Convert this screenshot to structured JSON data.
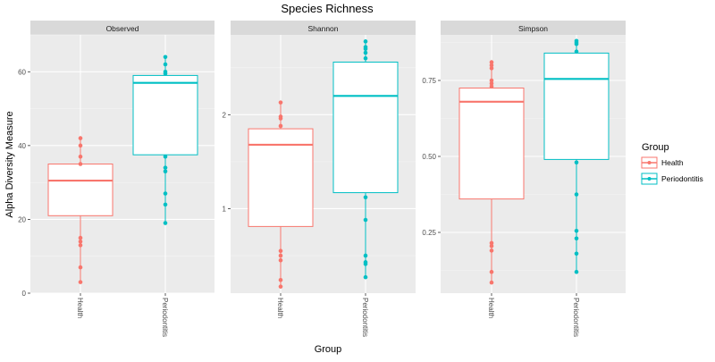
{
  "chart_data": {
    "type": "box",
    "title": "Species Richness",
    "xlabel": "Group",
    "ylabel": "Alpha Diversity Measure",
    "categories": [
      "Health",
      "Periodontitis"
    ],
    "legend": {
      "title": "Group",
      "position": "right",
      "items": [
        {
          "label": "Health",
          "color": "#F8766D"
        },
        {
          "label": "Periodontitis",
          "color": "#00BFC4"
        }
      ]
    },
    "panels": [
      {
        "name": "Observed",
        "ylim": [
          0,
          70
        ],
        "yticks": [
          0,
          20,
          40,
          60
        ],
        "ytick_labels": [
          "0",
          "20",
          "40",
          "60"
        ],
        "groups": [
          {
            "name": "Health",
            "q1": 21,
            "median": 30.5,
            "q3": 35,
            "whisker_low": 3,
            "whisker_high": 42,
            "points": [
              42,
              40,
              37,
              35,
              15,
              14,
              13,
              7,
              3
            ]
          },
          {
            "name": "Periodontitis",
            "q1": 37.5,
            "median": 57,
            "q3": 59,
            "whisker_low": 19,
            "whisker_high": 64,
            "points": [
              64,
              62,
              60,
              59.5,
              37,
              34,
              33,
              27,
              24,
              19
            ]
          }
        ]
      },
      {
        "name": "Shannon",
        "ylim": [
          0.1,
          2.85
        ],
        "yticks": [
          1,
          2
        ],
        "ytick_labels": [
          "1",
          "2"
        ],
        "groups": [
          {
            "name": "Health",
            "q1": 0.81,
            "median": 1.68,
            "q3": 1.85,
            "whisker_low": 0.17,
            "whisker_high": 2.13,
            "points": [
              2.13,
              1.98,
              1.96,
              1.88,
              0.55,
              0.5,
              0.45,
              0.24,
              0.17
            ]
          },
          {
            "name": "Periodontitis",
            "q1": 1.17,
            "median": 2.2,
            "q3": 2.56,
            "whisker_low": 0.27,
            "whisker_high": 2.78,
            "points": [
              2.78,
              2.72,
              2.7,
              2.66,
              2.6,
              1.12,
              0.88,
              0.5,
              0.43,
              0.41,
              0.27
            ]
          }
        ]
      },
      {
        "name": "Simpson",
        "ylim": [
          0.05,
          0.9
        ],
        "yticks": [
          0.25,
          0.5,
          0.75
        ],
        "ytick_labels": [
          "0.25",
          "0.50",
          "0.75"
        ],
        "groups": [
          {
            "name": "Health",
            "q1": 0.36,
            "median": 0.68,
            "q3": 0.725,
            "whisker_low": 0.085,
            "whisker_high": 0.81,
            "points": [
              0.81,
              0.8,
              0.79,
              0.75,
              0.74,
              0.73,
              0.215,
              0.205,
              0.19,
              0.12,
              0.085
            ]
          },
          {
            "name": "Periodontitis",
            "q1": 0.49,
            "median": 0.755,
            "q3": 0.84,
            "whisker_low": 0.12,
            "whisker_high": 0.88,
            "points": [
              0.88,
              0.875,
              0.87,
              0.845,
              0.48,
              0.375,
              0.255,
              0.23,
              0.18,
              0.12
            ]
          }
        ]
      }
    ]
  }
}
